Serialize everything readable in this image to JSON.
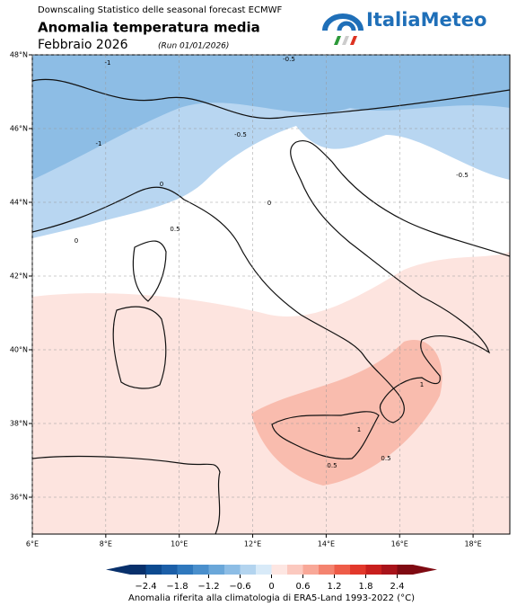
{
  "header": {
    "subtitle": "Downscaling Statistico delle seasonal forecast ECMWF",
    "title": "Anomalia temperatura media",
    "period": "Febbraio 2026",
    "run": "(Run 01/01/2026)",
    "logo": "ItaliaMeteo"
  },
  "map": {
    "xlim": [
      6,
      19
    ],
    "ylim": [
      35,
      48
    ],
    "xticks": [
      {
        "value": 6,
        "label": "6°E"
      },
      {
        "value": 8,
        "label": "8°E"
      },
      {
        "value": 10,
        "label": "10°E"
      },
      {
        "value": 12,
        "label": "12°E"
      },
      {
        "value": 14,
        "label": "14°E"
      },
      {
        "value": 16,
        "label": "16°E"
      },
      {
        "value": 18,
        "label": "18°E"
      }
    ],
    "yticks": [
      {
        "value": 36,
        "label": "36°N"
      },
      {
        "value": 38,
        "label": "38°N"
      },
      {
        "value": 40,
        "label": "40°N"
      },
      {
        "value": 42,
        "label": "42°N"
      },
      {
        "value": 44,
        "label": "44°N"
      },
      {
        "value": 46,
        "label": "46°N"
      },
      {
        "value": 48,
        "label": "48°N"
      }
    ],
    "contour_labels": [
      "-1",
      "-0.5",
      "-1",
      "-0.5",
      "-0.5",
      "0",
      "0",
      "0",
      "0.5",
      "1",
      "1",
      "0.5",
      "0.5"
    ]
  },
  "colorbar": {
    "label": "Anomalia riferita alla climatologia di ERA5-Land 1993-2022 (°C)",
    "lim": [
      -2.7,
      2.7
    ],
    "ticks": [
      {
        "value": -2.4,
        "label": "−2.4"
      },
      {
        "value": -1.8,
        "label": "−1.8"
      },
      {
        "value": -1.2,
        "label": "−1.2"
      },
      {
        "value": -0.6,
        "label": "−0.6"
      },
      0,
      0.6,
      1.2,
      1.8,
      2.4
    ],
    "colors": [
      "#08306b",
      "#0d4a8f",
      "#1c5fa8",
      "#2f78bd",
      "#4a8fcc",
      "#6aa7d9",
      "#8dbde5",
      "#b3d4ef",
      "#d8eaf8",
      "#fde6e2",
      "#fbc9bf",
      "#f8a898",
      "#f4836f",
      "#ee5c48",
      "#e2382b",
      "#c81f1d",
      "#a8131a",
      "#7f0a12"
    ]
  }
}
